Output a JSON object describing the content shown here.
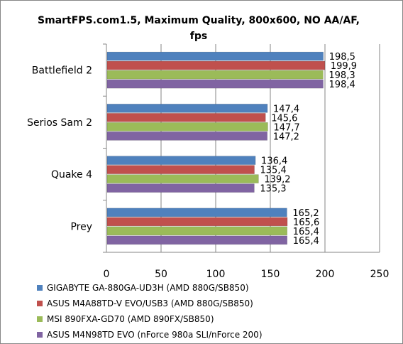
{
  "chart_data": {
    "type": "bar",
    "orientation": "horizontal",
    "title": "SmartFPS.com1.5, Maximum Quality, 800x600, NO AA/AF, fps",
    "categories": [
      "Battlefield 2",
      "Serios Sam 2",
      "Quake 4",
      "Prey"
    ],
    "series": [
      {
        "name": "GIGABYTE GA-880GA-UD3H (AMD 880G/SB850)",
        "values": [
          198.5,
          147.4,
          136.4,
          165.2
        ],
        "labels": [
          "198,5",
          "147,4",
          "136,4",
          "165,2"
        ]
      },
      {
        "name": "ASUS M4A88TD-V EVO/USB3 (AMD 880G/SB850)",
        "values": [
          199.9,
          145.6,
          135.4,
          165.6
        ],
        "labels": [
          "199,9",
          "145,6",
          "135,4",
          "165,6"
        ]
      },
      {
        "name": "MSI 890FXA-GD70 (AMD 890FX/SB850)",
        "values": [
          198.3,
          147.7,
          139.2,
          165.4
        ],
        "labels": [
          "198,3",
          "147,7",
          "139,2",
          "165,4"
        ]
      },
      {
        "name": "ASUS M4N98TD EVO (nForce 980a SLI/nForce 200)",
        "values": [
          198.4,
          147.2,
          135.3,
          165.4
        ],
        "labels": [
          "198,4",
          "147,2",
          "135,3",
          "165,4"
        ]
      }
    ],
    "xlim": [
      0,
      250
    ],
    "xticks": [
      0,
      50,
      100,
      150,
      200,
      250
    ],
    "xlabel": "",
    "ylabel": "",
    "grid": true,
    "legend_position": "bottom",
    "colors": [
      "#4f81bd",
      "#c0504d",
      "#9bbb59",
      "#8064a2"
    ]
  }
}
